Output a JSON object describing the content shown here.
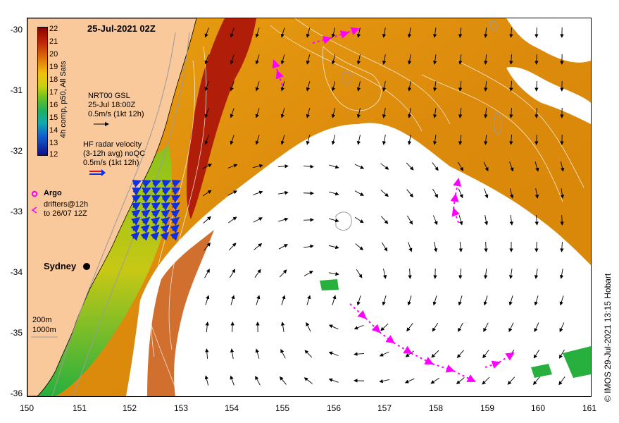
{
  "title": "25-Jul-2021 02Z",
  "colorbar": {
    "labels": [
      "22",
      "21",
      "20",
      "19",
      "18",
      "17",
      "16",
      "15",
      "14",
      "13",
      "12"
    ],
    "caption": "4h comp, p50, All Sats"
  },
  "legend": {
    "gsl_lines": [
      "NRT00 GSL",
      "25-Jul 18:00Z",
      "0.5m/s (1kt 12h)"
    ],
    "hf_lines": [
      "HF radar velocity",
      "(3-12h avg) noQC",
      "0.5m/s (1kt 12h)"
    ],
    "argo": "Argo",
    "drifter_lines": [
      "drifters@12h",
      "to 26/07 12Z"
    ],
    "depth_200": "200m",
    "depth_1000": "1000m"
  },
  "city": "Sydney",
  "credit": "© IMOS 29-Jul-2021 13:15 Hobart",
  "axes": {
    "y_ticks": [
      "-30",
      "-31",
      "-32",
      "-33",
      "-34",
      "-35",
      "-36"
    ],
    "x_ticks": [
      "150",
      "151",
      "152",
      "153",
      "154",
      "155",
      "156",
      "157",
      "158",
      "159",
      "160",
      "161"
    ]
  },
  "colors": {
    "land": "#f9c89b",
    "warm_core": "#b01e0a",
    "orange": "#e0900a",
    "drifter": "#ff00ff",
    "hf_radar": "#1030e0"
  }
}
